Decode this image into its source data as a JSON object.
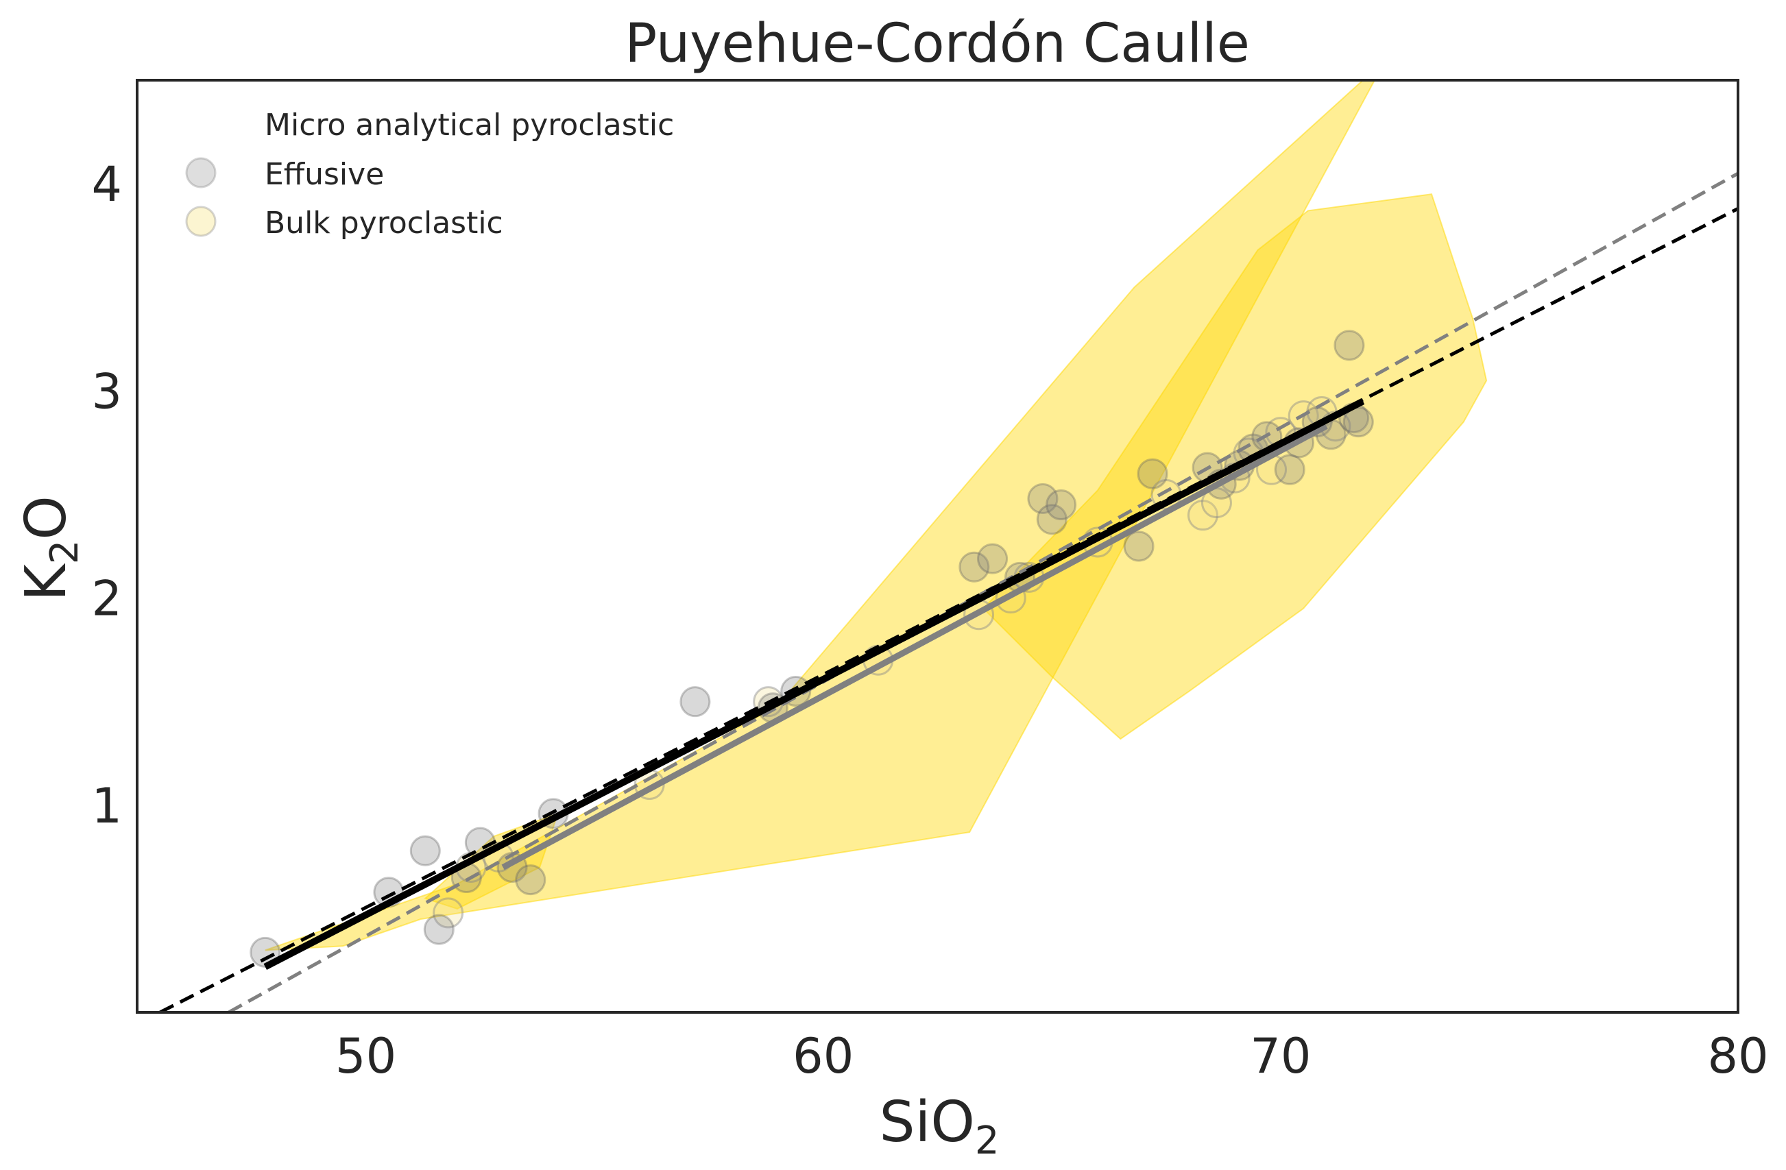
{
  "chart_data": {
    "type": "scatter",
    "title": "Puyehue-Cordón Caulle",
    "xlabel": {
      "main": "SiO",
      "sub": "2"
    },
    "ylabel": {
      "main": "K",
      "sub": "2",
      "after": "O"
    },
    "xlim": [
      45,
      80
    ],
    "ylim": [
      0,
      4.5
    ],
    "xticks": [
      "50",
      "60",
      "70",
      "80"
    ],
    "xtick_values": [
      50,
      60,
      70,
      80
    ],
    "yticks": [
      "1",
      "2",
      "3",
      "4"
    ],
    "ytick_values": [
      1,
      2,
      3,
      4
    ],
    "grid": false,
    "legend_placement": "top-left",
    "legend": [
      {
        "label": "Micro analytical pyroclastic",
        "marker": "none"
      },
      {
        "label": "Effusive",
        "marker": "circle",
        "color": "#a0a0a0"
      },
      {
        "label": "Bulk pyroclastic",
        "marker": "circle",
        "color": "#f5e27a"
      }
    ],
    "colors": {
      "polygon_fill": "#ffd700",
      "effusive": "#808080",
      "bulk": "#f0dd80",
      "fit_black": "#000000",
      "fit_gray": "#808080"
    },
    "polygons": [
      {
        "name": "Micro analytical pyroclastic field 1",
        "points": [
          [
            47.8,
            0.3
          ],
          [
            52.0,
            0.62
          ],
          [
            59.0,
            1.48
          ],
          [
            66.8,
            3.5
          ],
          [
            72.3,
            4.6
          ],
          [
            63.2,
            0.87
          ],
          [
            51.2,
            0.45
          ],
          [
            49.5,
            0.32
          ]
        ]
      },
      {
        "name": "Micro analytical pyroclastic field 2",
        "points": [
          [
            63.5,
            1.95
          ],
          [
            66.0,
            2.52
          ],
          [
            69.5,
            3.68
          ],
          [
            70.6,
            3.87
          ],
          [
            73.3,
            3.95
          ],
          [
            74.2,
            3.35
          ],
          [
            74.5,
            3.05
          ],
          [
            74.0,
            2.85
          ],
          [
            70.5,
            1.95
          ],
          [
            68.0,
            1.55
          ],
          [
            66.5,
            1.32
          ],
          [
            65.0,
            1.62
          ]
        ]
      },
      {
        "name": "Micro analytical pyroclastic field 3",
        "points": [
          [
            51.3,
            0.55
          ],
          [
            52.8,
            0.85
          ],
          [
            54.2,
            0.96
          ],
          [
            53.8,
            0.7
          ],
          [
            52.0,
            0.5
          ]
        ]
      }
    ],
    "series": [
      {
        "name": "Effusive",
        "points": [
          [
            47.8,
            0.29
          ],
          [
            50.5,
            0.58
          ],
          [
            51.3,
            0.78
          ],
          [
            51.6,
            0.4
          ],
          [
            52.2,
            0.65
          ],
          [
            52.5,
            0.82
          ],
          [
            53.2,
            0.7
          ],
          [
            53.6,
            0.64
          ],
          [
            54.1,
            0.96
          ],
          [
            57.2,
            1.5
          ],
          [
            58.9,
            1.47
          ],
          [
            59.4,
            1.55
          ],
          [
            63.3,
            2.15
          ],
          [
            63.7,
            2.19
          ],
          [
            64.3,
            2.1
          ],
          [
            64.8,
            2.48
          ],
          [
            65.0,
            2.38
          ],
          [
            65.2,
            2.45
          ],
          [
            66.9,
            2.25
          ],
          [
            67.2,
            2.6
          ],
          [
            68.4,
            2.63
          ],
          [
            68.7,
            2.55
          ],
          [
            69.1,
            2.64
          ],
          [
            69.4,
            2.72
          ],
          [
            69.7,
            2.78
          ],
          [
            70.2,
            2.62
          ],
          [
            70.4,
            2.75
          ],
          [
            70.8,
            2.85
          ],
          [
            71.1,
            2.79
          ],
          [
            71.5,
            3.22
          ],
          [
            71.6,
            2.87
          ],
          [
            71.7,
            2.85
          ]
        ]
      },
      {
        "name": "Bulk pyroclastic",
        "points": [
          [
            51.8,
            0.48
          ],
          [
            52.3,
            0.7
          ],
          [
            52.9,
            0.75
          ],
          [
            56.2,
            1.1
          ],
          [
            58.8,
            1.5
          ],
          [
            61.2,
            1.7
          ],
          [
            63.4,
            1.92
          ],
          [
            64.1,
            2.0
          ],
          [
            64.5,
            2.1
          ],
          [
            66.0,
            2.27
          ],
          [
            67.5,
            2.5
          ],
          [
            68.3,
            2.4
          ],
          [
            68.6,
            2.46
          ],
          [
            69.0,
            2.58
          ],
          [
            69.3,
            2.7
          ],
          [
            69.8,
            2.62
          ],
          [
            70.0,
            2.8
          ],
          [
            70.5,
            2.88
          ],
          [
            70.9,
            2.9
          ],
          [
            71.2,
            2.83
          ]
        ]
      }
    ],
    "lines": [
      {
        "name": "fit black solid",
        "color": "#000000",
        "style": "solid",
        "width": 10,
        "points": [
          [
            47.8,
            0.22
          ],
          [
            71.8,
            2.95
          ]
        ]
      },
      {
        "name": "fit gray solid",
        "color": "#808080",
        "style": "solid",
        "width": 9,
        "points": [
          [
            53.0,
            0.7
          ],
          [
            71.0,
            2.83
          ]
        ]
      },
      {
        "name": "fit gray dashed",
        "color": "#808080",
        "style": "dashed",
        "width": 5,
        "points": [
          [
            47.0,
            0.0
          ],
          [
            80.0,
            4.05
          ]
        ]
      },
      {
        "name": "fit black dashed",
        "color": "#000000",
        "style": "dashed",
        "width": 5,
        "points": [
          [
            45.5,
            0.0
          ],
          [
            80.0,
            3.88
          ]
        ]
      }
    ]
  }
}
